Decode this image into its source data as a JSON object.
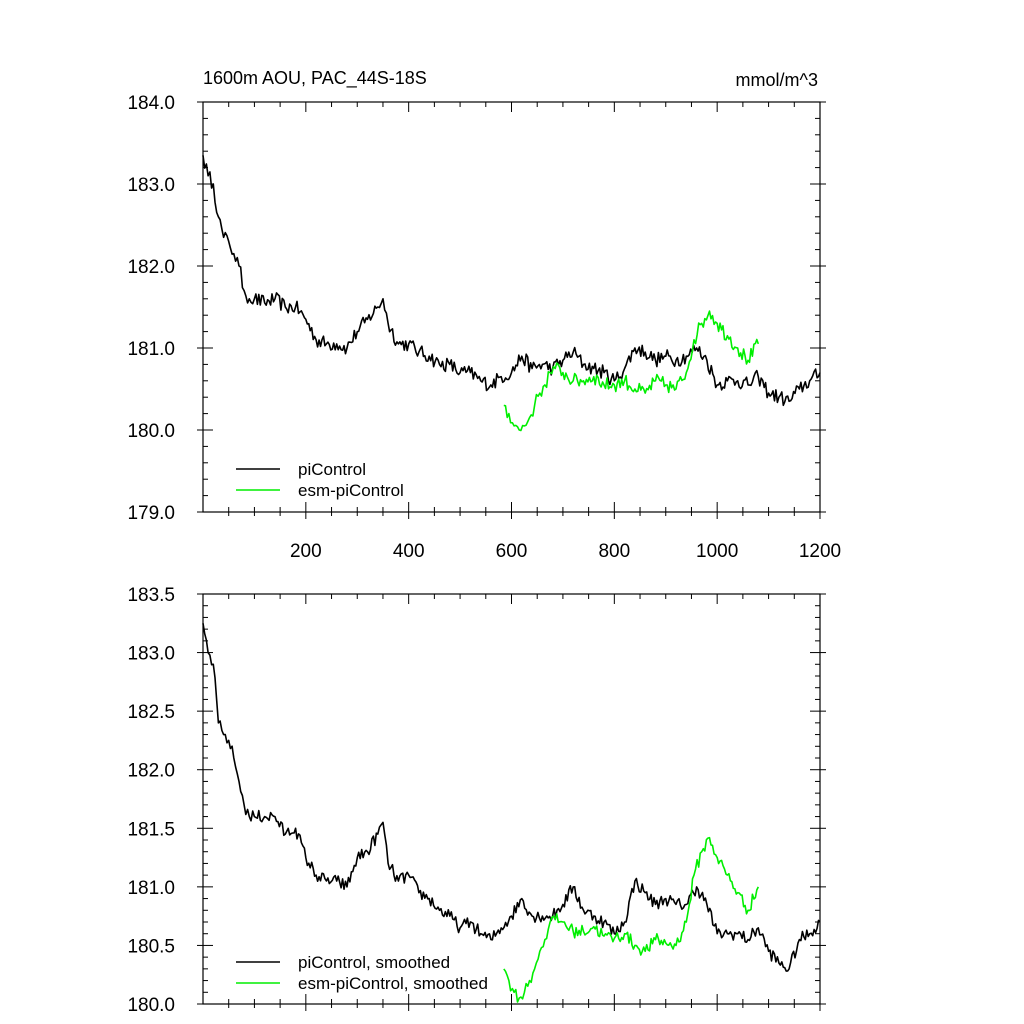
{
  "colors": {
    "picontrol": "#000000",
    "esm_picontrol": "#00ee00",
    "axes": "#000000",
    "background": "#ffffff"
  },
  "chart_data": [
    {
      "type": "line",
      "title_left": "1600m AOU, PAC_44S-18S",
      "title_right": "mmol/m^3",
      "xlabel": "",
      "ylabel": "",
      "xlim": [
        0,
        1200
      ],
      "ylim": [
        179.0,
        184.0
      ],
      "x_ticks": [
        200,
        400,
        600,
        800,
        1000,
        1200
      ],
      "x_tick_labels": [
        "200",
        "400",
        "600",
        "800",
        "1000",
        "1200"
      ],
      "y_ticks": [
        179.0,
        180.0,
        181.0,
        182.0,
        183.0,
        184.0
      ],
      "y_tick_labels": [
        "179.0",
        "180.0",
        "181.0",
        "182.0",
        "183.0",
        "184.0"
      ],
      "legend_position": "bottom-left",
      "series": [
        {
          "name": "piControl",
          "color_key": "picontrol",
          "x": [
            0,
            10,
            20,
            30,
            40,
            50,
            60,
            70,
            80,
            90,
            100,
            120,
            140,
            160,
            180,
            200,
            220,
            240,
            260,
            280,
            300,
            320,
            340,
            350,
            360,
            380,
            400,
            420,
            440,
            460,
            480,
            500,
            520,
            540,
            560,
            580,
            600,
            620,
            640,
            660,
            680,
            700,
            720,
            740,
            760,
            780,
            800,
            820,
            840,
            860,
            880,
            900,
            920,
            940,
            960,
            980,
            1000,
            1020,
            1040,
            1060,
            1080,
            1100,
            1120,
            1140,
            1160,
            1180,
            1200
          ],
          "values": [
            183.35,
            183.1,
            183.0,
            182.6,
            182.35,
            182.3,
            182.15,
            182.0,
            181.7,
            181.6,
            181.6,
            181.55,
            181.6,
            181.5,
            181.5,
            181.35,
            181.1,
            181.05,
            181.05,
            181.0,
            181.2,
            181.35,
            181.5,
            181.6,
            181.3,
            181.05,
            181.05,
            180.95,
            180.9,
            180.8,
            180.8,
            180.7,
            180.7,
            180.6,
            180.55,
            180.65,
            180.7,
            180.9,
            180.75,
            180.8,
            180.75,
            180.85,
            180.95,
            180.8,
            180.75,
            180.7,
            180.6,
            180.75,
            181.0,
            180.95,
            180.85,
            180.9,
            180.85,
            180.9,
            181.0,
            180.85,
            180.55,
            180.6,
            180.6,
            180.55,
            180.65,
            180.45,
            180.4,
            180.35,
            180.5,
            180.6,
            180.7
          ]
        },
        {
          "name": "esm-piControl",
          "color_key": "esm_picontrol",
          "x": [
            585,
            595,
            605,
            615,
            625,
            635,
            645,
            655,
            665,
            675,
            685,
            700,
            720,
            740,
            760,
            780,
            800,
            820,
            840,
            860,
            880,
            900,
            920,
            940,
            955,
            970,
            985,
            1000,
            1020,
            1040,
            1060,
            1080
          ],
          "values": [
            180.3,
            180.2,
            180.05,
            180.0,
            180.05,
            180.15,
            180.3,
            180.45,
            180.55,
            180.7,
            180.75,
            180.7,
            180.6,
            180.6,
            180.65,
            180.55,
            180.55,
            180.6,
            180.5,
            180.45,
            180.6,
            180.55,
            180.5,
            180.7,
            181.1,
            181.3,
            181.45,
            181.3,
            181.15,
            181.0,
            180.85,
            181.05
          ]
        }
      ],
      "legend": [
        "piControl",
        "esm-piControl"
      ]
    },
    {
      "type": "line",
      "xlabel": "",
      "ylabel": "",
      "xlim": [
        0,
        1200
      ],
      "ylim": [
        180.0,
        183.5
      ],
      "x_ticks": [
        200,
        400,
        600,
        800,
        1000,
        1200
      ],
      "y_ticks": [
        180.0,
        180.5,
        181.0,
        181.5,
        182.0,
        182.5,
        183.0,
        183.5
      ],
      "y_tick_labels": [
        "180.0",
        "180.5",
        "181.0",
        "181.5",
        "182.0",
        "182.5",
        "183.0",
        "183.5"
      ],
      "legend_position": "bottom-left",
      "series": [
        {
          "name": "piControl, smoothed",
          "color_key": "picontrol",
          "x": [
            0,
            10,
            20,
            30,
            40,
            50,
            60,
            70,
            80,
            90,
            100,
            120,
            140,
            160,
            180,
            200,
            220,
            240,
            260,
            280,
            300,
            320,
            340,
            350,
            360,
            380,
            400,
            420,
            440,
            460,
            480,
            500,
            520,
            540,
            560,
            580,
            600,
            620,
            640,
            660,
            680,
            700,
            720,
            740,
            760,
            780,
            800,
            820,
            840,
            860,
            880,
            900,
            920,
            940,
            960,
            980,
            1000,
            1020,
            1040,
            1060,
            1080,
            1100,
            1120,
            1140,
            1160,
            1180,
            1200
          ],
          "values": [
            183.25,
            183.0,
            182.9,
            182.4,
            182.3,
            182.25,
            182.1,
            181.9,
            181.7,
            181.6,
            181.6,
            181.6,
            181.6,
            181.45,
            181.5,
            181.25,
            181.1,
            181.05,
            181.05,
            181.0,
            181.25,
            181.3,
            181.45,
            181.55,
            181.2,
            181.05,
            181.1,
            180.95,
            180.9,
            180.8,
            180.75,
            180.65,
            180.7,
            180.6,
            180.55,
            180.65,
            180.75,
            180.9,
            180.75,
            180.75,
            180.75,
            180.85,
            181.0,
            180.8,
            180.75,
            180.7,
            180.6,
            180.7,
            181.05,
            180.95,
            180.85,
            180.9,
            180.85,
            180.85,
            181.0,
            180.85,
            180.6,
            180.6,
            180.6,
            180.55,
            180.65,
            180.45,
            180.35,
            180.3,
            180.55,
            180.6,
            180.7
          ]
        },
        {
          "name": "esm-piControl, smoothed",
          "color_key": "esm_picontrol",
          "x": [
            585,
            595,
            605,
            615,
            625,
            635,
            645,
            655,
            665,
            675,
            685,
            700,
            720,
            740,
            760,
            780,
            800,
            820,
            840,
            860,
            880,
            900,
            920,
            940,
            955,
            970,
            985,
            1000,
            1020,
            1040,
            1060,
            1080
          ],
          "values": [
            180.3,
            180.2,
            180.1,
            180.05,
            180.1,
            180.2,
            180.3,
            180.45,
            180.55,
            180.7,
            180.72,
            180.7,
            180.62,
            180.62,
            180.66,
            180.58,
            180.56,
            180.6,
            180.5,
            180.45,
            180.55,
            180.52,
            180.5,
            180.7,
            181.1,
            181.3,
            181.42,
            181.25,
            181.1,
            180.95,
            180.8,
            181.0
          ]
        }
      ],
      "legend": [
        "piControl, smoothed",
        "esm-piControl, smoothed"
      ]
    }
  ]
}
